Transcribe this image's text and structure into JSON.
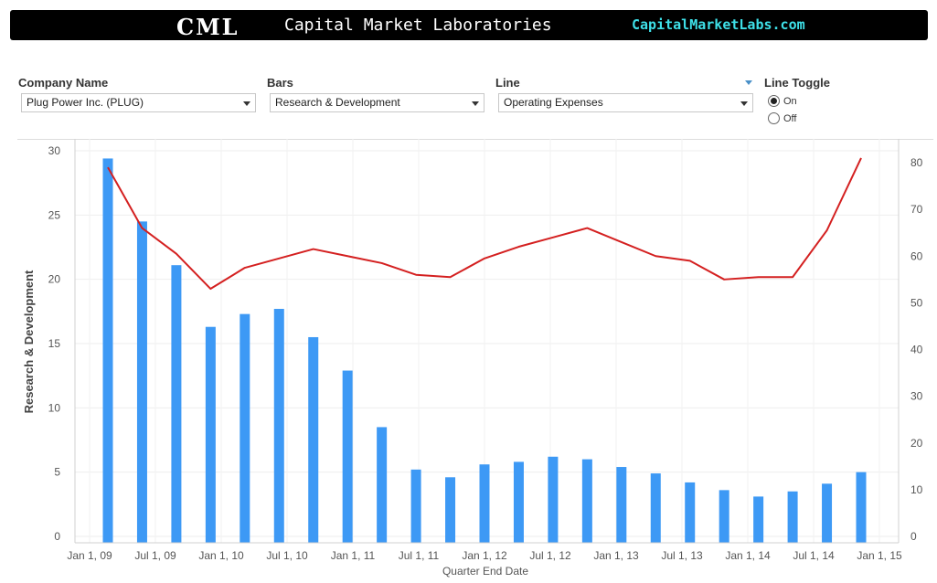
{
  "banner": {
    "logo": "CML",
    "title": "Capital Market Laboratories",
    "url": "CapitalMarketLabs.com"
  },
  "controls": {
    "company": {
      "label": "Company Name",
      "value": "Plug Power Inc. (PLUG)"
    },
    "bars": {
      "label": "Bars",
      "value": "Research & Development"
    },
    "line": {
      "label": "Line",
      "value": "Operating Expenses"
    },
    "toggle": {
      "label": "Line Toggle",
      "options": [
        "On",
        "Off"
      ],
      "selected": "On"
    }
  },
  "chart_data": {
    "type": "bar",
    "xlabel": "Quarter End Date",
    "ylabel": "Research & Development",
    "y_left_lim": [
      0,
      30
    ],
    "y_left_ticks": [
      0,
      5,
      10,
      15,
      20,
      25,
      30
    ],
    "y_right_lim": [
      0,
      80
    ],
    "y_right_ticks": [
      0,
      10,
      20,
      30,
      40,
      50,
      60,
      70,
      80
    ],
    "x_tick_labels": [
      "Jan 1, 09",
      "Jul 1, 09",
      "Jan 1, 10",
      "Jul 1, 10",
      "Jan 1, 11",
      "Jul 1, 11",
      "Jan 1, 12",
      "Jul 1, 12",
      "Jan 1, 13",
      "Jul 1, 13",
      "Jan 1, 14",
      "Jul 1, 14",
      "Jan 1, 15"
    ],
    "grid": true,
    "bar_color": "#3d99f5",
    "line_color": "#d42020",
    "series": [
      {
        "name": "Research & Development",
        "kind": "bar",
        "axis": "left",
        "values": [
          29.4,
          24.5,
          21.1,
          16.3,
          17.3,
          17.7,
          15.5,
          12.9,
          8.5,
          5.2,
          4.6,
          5.6,
          5.8,
          6.2,
          6.0,
          5.4,
          4.9,
          4.2,
          3.6,
          3.1,
          3.5,
          4.1,
          5.0
        ]
      },
      {
        "name": "Operating Expenses",
        "kind": "line",
        "axis": "right",
        "values": [
          79.0,
          66.0,
          60.5,
          53.0,
          57.5,
          59.5,
          61.5,
          60.0,
          58.5,
          56.0,
          55.5,
          59.5,
          62.0,
          64.0,
          66.0,
          63.0,
          60.0,
          59.0,
          55.0,
          55.5,
          55.5,
          65.5,
          81.0
        ]
      }
    ]
  }
}
